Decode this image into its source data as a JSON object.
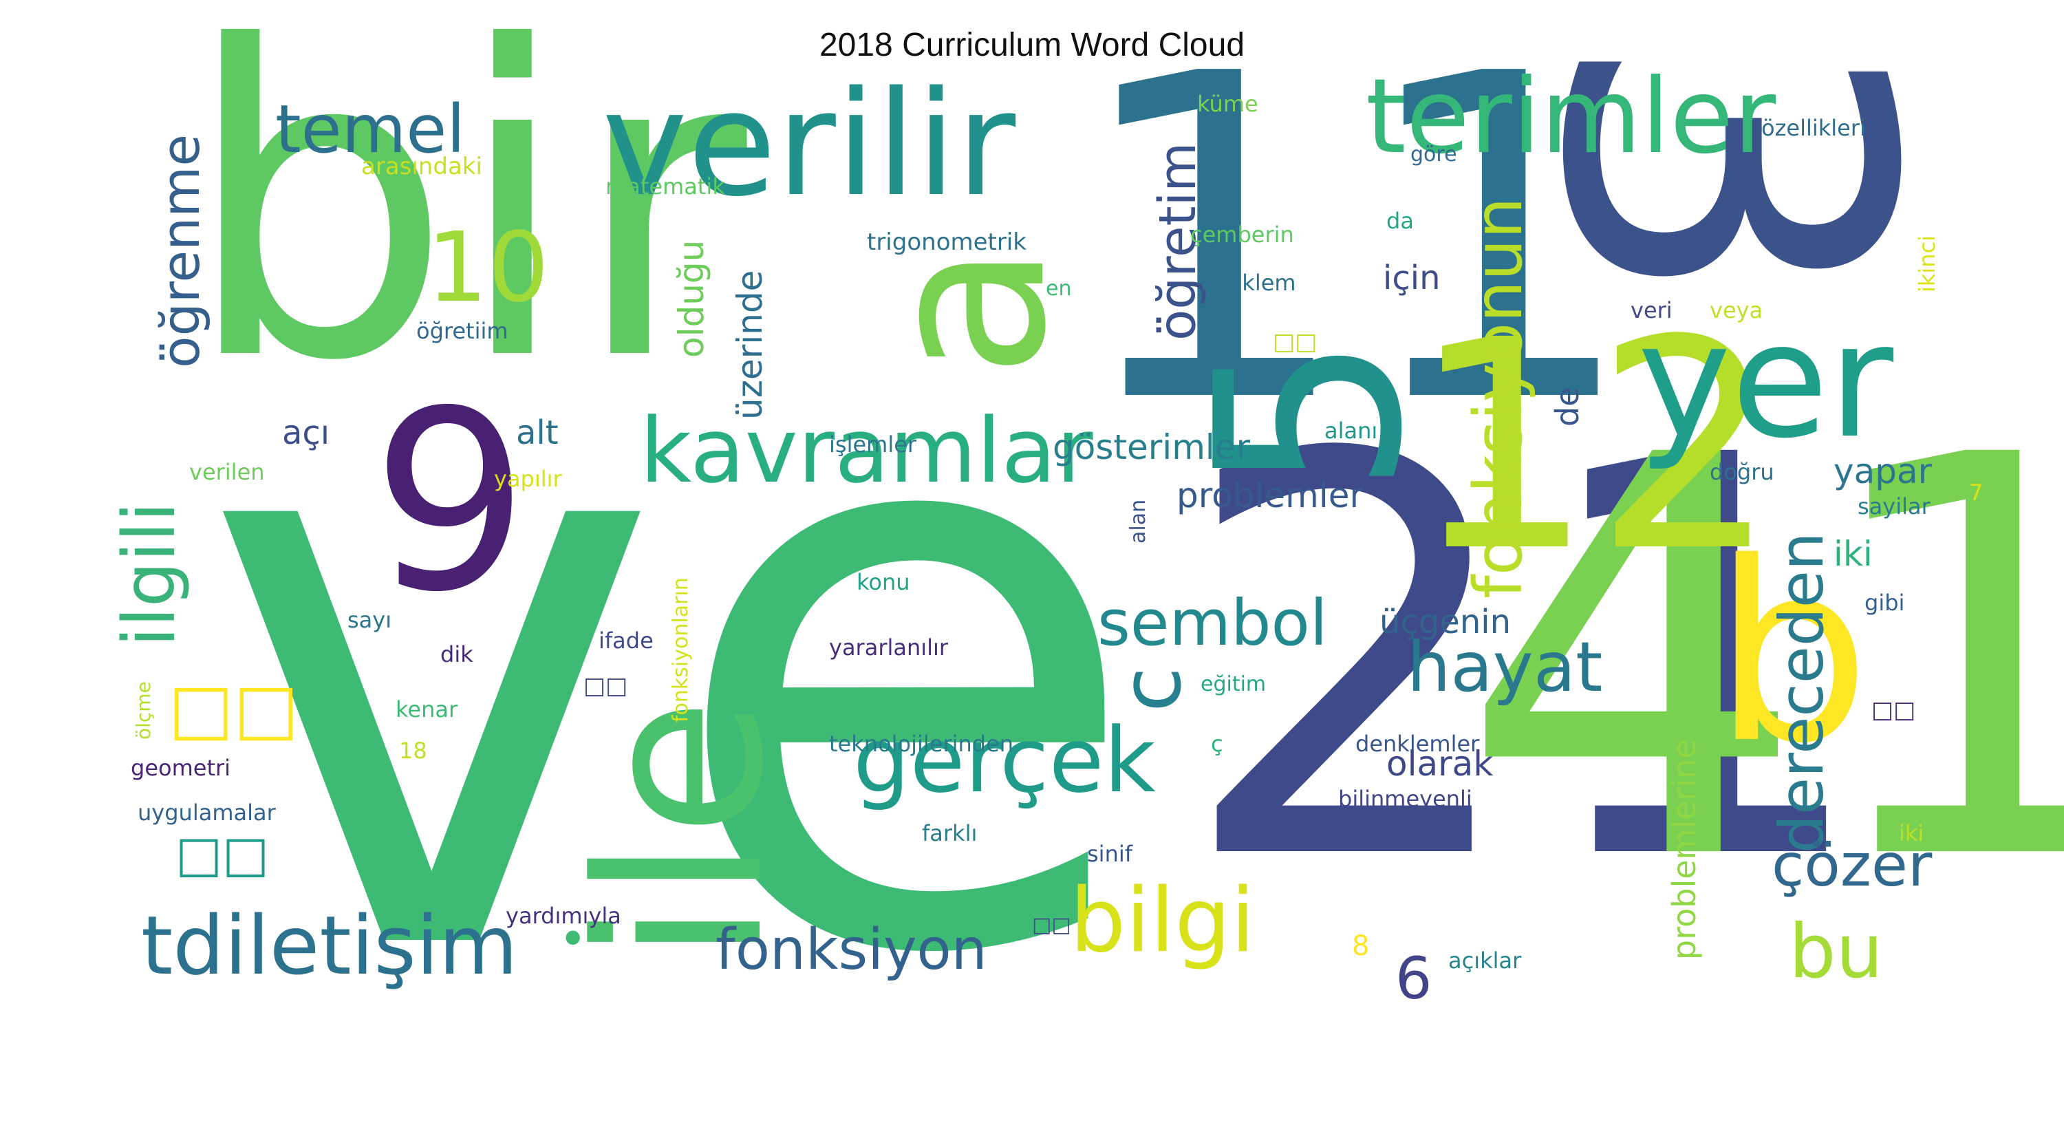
{
  "title": "2018 Curriculum Word Cloud",
  "palette": "viridis",
  "background": "#ffffff",
  "words": [
    {
      "text": "ve",
      "color": "#3dbb74"
    },
    {
      "text": "bir",
      "color": "#5ec962"
    },
    {
      "text": "11",
      "color": "#2c728e"
    },
    {
      "text": "3",
      "color": "#3b528b"
    },
    {
      "text": "21",
      "color": "#3e4a89"
    },
    {
      "text": "41",
      "color": "#7ad151"
    },
    {
      "text": "12",
      "color": "#b5de2b"
    },
    {
      "text": "ile",
      "color": "#4ac16d"
    },
    {
      "text": "a",
      "color": "#7ad151"
    },
    {
      "text": "5",
      "color": "#21918c"
    },
    {
      "text": "9",
      "color": "#482173"
    },
    {
      "text": "verilir",
      "color": "#21918c"
    },
    {
      "text": "terimler",
      "color": "#35b779"
    },
    {
      "text": "yer",
      "color": "#1f9e89"
    },
    {
      "text": "b",
      "color": "#fde725"
    },
    {
      "text": "kavramlar",
      "color": "#29af7f"
    },
    {
      "text": "tdiletişim",
      "color": "#2c728e"
    },
    {
      "text": "gerçek",
      "color": "#1e9c89"
    },
    {
      "text": "bilgi",
      "color": "#d8e219"
    },
    {
      "text": "fonksiyon",
      "color": "#33638d"
    },
    {
      "text": "hayat",
      "color": "#2a788e"
    },
    {
      "text": "sembol",
      "color": "#23898e"
    },
    {
      "text": "fonksiyonun",
      "color": "#b8de29"
    },
    {
      "text": "temel",
      "color": "#2d708e"
    },
    {
      "text": "10",
      "color": "#a0da39"
    },
    {
      "text": "öğrenme",
      "color": "#355f8d"
    },
    {
      "text": "ilgili",
      "color": "#3ab37a"
    },
    {
      "text": "öğretim",
      "color": "#3b528b"
    },
    {
      "text": "c",
      "color": "#27808e"
    },
    {
      "text": "dereceden",
      "color": "#2a7b8e"
    },
    {
      "text": "çözer",
      "color": "#31688e"
    },
    {
      "text": "bu",
      "color": "#a5db36"
    },
    {
      "text": "6",
      "color": "#414487"
    },
    {
      "text": "olduğu",
      "color": "#6ccd5a"
    },
    {
      "text": "üzerinde",
      "color": "#2e6e8e"
    },
    {
      "text": "gösterimler",
      "color": "#277f8e"
    },
    {
      "text": "problemler",
      "color": "#38598c"
    },
    {
      "text": "için",
      "color": "#3e4c8a"
    },
    {
      "text": "yapar",
      "color": "#2b758e"
    },
    {
      "text": "iki",
      "color": "#2db27d"
    },
    {
      "text": "olarak",
      "color": "#3f4889"
    },
    {
      "text": "üçgenin",
      "color": "#33638d"
    },
    {
      "text": "açı",
      "color": "#3c4f8a"
    },
    {
      "text": "alt",
      "color": "#2d718e"
    },
    {
      "text": "de",
      "color": "#39568c"
    },
    {
      "text": "problemlerine",
      "color": "#8fd744"
    },
    {
      "text": "□□",
      "color": "#fde725"
    },
    {
      "text": "□□",
      "color": "#1e9b8a"
    },
    {
      "text": "•",
      "color": "#3dbb74"
    },
    {
      "text": "küme",
      "color": "#7ad151"
    },
    {
      "text": "özellikleri",
      "color": "#2f6c8e"
    },
    {
      "text": "arasındaki",
      "color": "#c8e020"
    },
    {
      "text": "matematik",
      "color": "#5ec962"
    },
    {
      "text": "göre",
      "color": "#31688e"
    },
    {
      "text": "ikinci",
      "color": "#dde318"
    },
    {
      "text": "trigonometrik",
      "color": "#2c728e"
    },
    {
      "text": "çemberin",
      "color": "#5ec962"
    },
    {
      "text": "da",
      "color": "#22a884"
    },
    {
      "text": "en",
      "color": "#3dbb74"
    },
    {
      "text": "denklem",
      "color": "#2c728e"
    },
    {
      "text": "veri",
      "color": "#3e4a89"
    },
    {
      "text": "veya",
      "color": "#c0df25"
    },
    {
      "text": "öğretiim",
      "color": "#31688e"
    },
    {
      "text": "□□",
      "color": "#bddf26"
    },
    {
      "text": "işlemler",
      "color": "#2b758e"
    },
    {
      "text": "alanı",
      "color": "#1f968b"
    },
    {
      "text": "doğru",
      "color": "#2c728e"
    },
    {
      "text": "verilen",
      "color": "#6ccd5a"
    },
    {
      "text": "yapılır",
      "color": "#d8e219"
    },
    {
      "text": "fonksiyonların",
      "color": "#d2e21b"
    },
    {
      "text": "alan",
      "color": "#3b528b"
    },
    {
      "text": "sayilar",
      "color": "#287c8e"
    },
    {
      "text": "7",
      "color": "#dde318"
    },
    {
      "text": "konu",
      "color": "#20a386"
    },
    {
      "text": "gibi",
      "color": "#355f8d"
    },
    {
      "text": "sayı",
      "color": "#2b758e"
    },
    {
      "text": "ifade",
      "color": "#3e4a89"
    },
    {
      "text": "dik",
      "color": "#482878"
    },
    {
      "text": "yararlanılır",
      "color": "#472d7b"
    },
    {
      "text": "ölçme",
      "color": "#b5de2b"
    },
    {
      "text": "□□",
      "color": "#3e4a89"
    },
    {
      "text": "eğitim",
      "color": "#22a884"
    },
    {
      "text": "□□",
      "color": "#472d7b"
    },
    {
      "text": "kenar",
      "color": "#3dbb74"
    },
    {
      "text": "18",
      "color": "#c2df23"
    },
    {
      "text": "teknolojilerinden",
      "color": "#2a788e"
    },
    {
      "text": "ç",
      "color": "#2db27d"
    },
    {
      "text": "denklemler",
      "color": "#39568c"
    },
    {
      "text": "geometri",
      "color": "#482475"
    },
    {
      "text": "bilinmeyenli",
      "color": "#3f4788"
    },
    {
      "text": "uygulamalar",
      "color": "#33638d"
    },
    {
      "text": "farklı",
      "color": "#287d8e"
    },
    {
      "text": "□",
      "color": "#3e4a89"
    },
    {
      "text": "iki",
      "color": "#bddf26"
    },
    {
      "text": "sinif",
      "color": "#39568c"
    },
    {
      "text": "yardımıyla",
      "color": "#46327e"
    },
    {
      "text": "□□",
      "color": "#3e4a89"
    },
    {
      "text": "8",
      "color": "#fde725"
    },
    {
      "text": "açıklar",
      "color": "#25848e"
    }
  ]
}
